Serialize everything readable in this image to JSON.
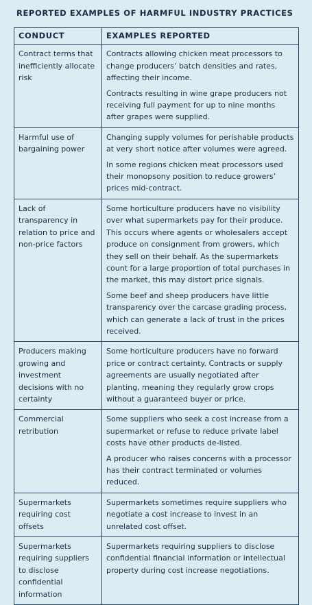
{
  "title": "REPORTED EXAMPLES OF HARMFUL INDUSTRY PRACTICES",
  "table": {
    "header": [
      "CONDUCT",
      "EXAMPLES REPORTED"
    ],
    "rows": [
      {
        "conduct": "Contract terms that inefficiently allocate risk",
        "examples": [
          "Contracts allowing chicken meat processors to change producers’ batch densities and rates, affecting their income.",
          "Contracts resulting in wine grape producers not receiving full payment for up to nine months after grapes were supplied."
        ]
      },
      {
        "conduct": "Harmful use of bargaining power",
        "examples": [
          "Changing supply volumes for perishable products at very short notice after volumes were agreed.",
          "In some regions chicken meat processors used their monopsony position to reduce growers’ prices mid-contract."
        ]
      },
      {
        "conduct": "Lack of transparency in relation to price and non-price factors",
        "examples": [
          "Some horticulture producers have no visibility over what supermarkets pay for their produce. This occurs where agents or wholesalers accept produce on consignment from growers, which they sell on their behalf. As the supermarkets count for a large proportion of total purchases in the market, this may distort price signals.",
          "Some beef and sheep producers have little transparency over the carcase grading process, which can generate a lack of trust in the prices received."
        ]
      },
      {
        "conduct": "Producers making growing and investment decisions with no certainty",
        "examples": [
          "Some horticulture producers have no forward price or contract certainty. Contracts or supply agreements are usually negotiated after planting, meaning they regularly grow crops without a guaranteed buyer or price."
        ]
      },
      {
        "conduct": "Commercial retribution",
        "examples": [
          "Some suppliers who seek a cost increase from a supermarket or refuse to reduce private label costs have other products de-listed.",
          "A producer who raises concerns with a processor has their contract terminated or volumes reduced."
        ]
      },
      {
        "conduct": "Supermarkets requiring cost offsets",
        "examples": [
          "Supermarkets sometimes require suppliers who negotiate a cost increase to invest in an unrelated cost offset."
        ]
      },
      {
        "conduct": "Supermarkets requiring suppliers to disclose confidential information",
        "examples": [
          "Supermarkets requiring suppliers to disclose confidential financial information or intellectual property during cost increase negotiations."
        ]
      }
    ]
  }
}
